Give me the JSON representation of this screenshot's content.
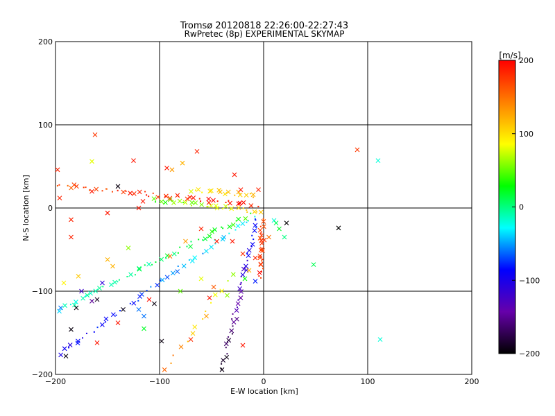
{
  "chart_data": {
    "type": "scatter",
    "title": "Tromsø 20120818 22:26:00-22:27:43",
    "subtitle": "RwPretec (8p) EXPERIMENTAL SKYMAP",
    "xlabel": "E-W location [km]",
    "ylabel": "N-S location [km]",
    "xlim": [
      -200,
      200
    ],
    "ylim": [
      -200,
      200
    ],
    "xticks": [
      "−200",
      "−100",
      "0",
      "100",
      "200"
    ],
    "yticks": [
      "200",
      "100",
      "0",
      "−100",
      "−200"
    ],
    "xtick_values": [
      -200,
      -100,
      0,
      100,
      200
    ],
    "ytick_values": [
      200,
      100,
      0,
      -100,
      -200
    ],
    "grid": true,
    "colorbar": {
      "unit_label": "[m/s]",
      "range": [
        -200,
        200
      ],
      "ticks": [
        "200",
        "100",
        "0",
        "−100",
        "−200"
      ],
      "tick_values": [
        200,
        100,
        0,
        -100,
        -200
      ],
      "colormap": [
        "#000000",
        "#6600aa",
        "#0000ff",
        "#00ffff",
        "#00ff00",
        "#ffff00",
        "#ff8000",
        "#ff0000"
      ]
    },
    "beams": [
      {
        "start": [
          -1,
          -12
        ],
        "end": [
          -3,
          -85
        ],
        "v": [
          160,
          185
        ],
        "n": 26
      },
      {
        "start": [
          -6,
          -12
        ],
        "end": [
          -40,
          -195
        ],
        "v": [
          -70,
          -195
        ],
        "n": 44
      },
      {
        "start": [
          -10,
          -10
        ],
        "end": [
          -200,
          -178
        ],
        "v": [
          -20,
          -105
        ],
        "n": 50
      },
      {
        "start": [
          -14,
          -8
        ],
        "end": [
          -195,
          -122
        ],
        "v": [
          35,
          -25
        ],
        "n": 48
      },
      {
        "start": [
          -4,
          -4
        ],
        "end": [
          -105,
          10
        ],
        "v": [
          105,
          40
        ],
        "n": 30
      },
      {
        "start": [
          -6,
          3
        ],
        "end": [
          -198,
          28
        ],
        "v": [
          195,
          165
        ],
        "n": 48
      },
      {
        "start": [
          -30,
          -80
        ],
        "end": [
          -95,
          -195
        ],
        "v": [
          60,
          150
        ],
        "n": 14
      },
      {
        "start": [
          -8,
          15
        ],
        "end": [
          -70,
          22
        ],
        "v": [
          130,
          80
        ],
        "n": 16
      }
    ],
    "points": [
      {
        "x": -162,
        "y": 88,
        "v": 175
      },
      {
        "x": 90,
        "y": 70,
        "v": 175
      },
      {
        "x": 72,
        "y": -24,
        "v": -200
      },
      {
        "x": 22,
        "y": -18,
        "v": -200
      },
      {
        "x": 110,
        "y": 57,
        "v": -20
      },
      {
        "x": 112,
        "y": -158,
        "v": -20
      },
      {
        "x": 48,
        "y": -68,
        "v": 10
      },
      {
        "x": -185,
        "y": -146,
        "v": -195
      },
      {
        "x": -190,
        "y": -178,
        "v": -195
      },
      {
        "x": -160,
        "y": -162,
        "v": 190
      },
      {
        "x": -140,
        "y": -138,
        "v": 190
      },
      {
        "x": -120,
        "y": -122,
        "v": -60
      },
      {
        "x": -105,
        "y": -115,
        "v": -195
      },
      {
        "x": -98,
        "y": -160,
        "v": -195
      },
      {
        "x": -135,
        "y": -122,
        "v": -195
      },
      {
        "x": -125,
        "y": 57,
        "v": 190
      },
      {
        "x": -93,
        "y": 48,
        "v": 190
      },
      {
        "x": -64,
        "y": 68,
        "v": 185
      },
      {
        "x": -78,
        "y": 54,
        "v": 120
      },
      {
        "x": -88,
        "y": 46,
        "v": 130
      },
      {
        "x": -198,
        "y": 46,
        "v": 185
      },
      {
        "x": -196,
        "y": 12,
        "v": 185
      },
      {
        "x": -185,
        "y": -14,
        "v": 185
      },
      {
        "x": -185,
        "y": -35,
        "v": 185
      },
      {
        "x": -145,
        "y": -70,
        "v": 120
      },
      {
        "x": -150,
        "y": -62,
        "v": 120
      },
      {
        "x": -178,
        "y": -82,
        "v": 110
      },
      {
        "x": -192,
        "y": -90,
        "v": 90
      },
      {
        "x": -130,
        "y": -48,
        "v": 60
      },
      {
        "x": -120,
        "y": 0,
        "v": 190
      },
      {
        "x": -116,
        "y": 8,
        "v": 190
      },
      {
        "x": -60,
        "y": -25,
        "v": 185
      },
      {
        "x": -45,
        "y": -40,
        "v": 190
      },
      {
        "x": -30,
        "y": -40,
        "v": 190
      },
      {
        "x": -20,
        "y": -55,
        "v": 180
      },
      {
        "x": -35,
        "y": -105,
        "v": 60
      },
      {
        "x": -48,
        "y": -95,
        "v": 160
      },
      {
        "x": -52,
        "y": -108,
        "v": 190
      },
      {
        "x": -14,
        "y": -75,
        "v": 120
      },
      {
        "x": -18,
        "y": -85,
        "v": 30
      },
      {
        "x": -8,
        "y": -88,
        "v": -80
      },
      {
        "x": -150,
        "y": -6,
        "v": 190
      },
      {
        "x": -165,
        "y": 20,
        "v": 190
      },
      {
        "x": -165,
        "y": 56,
        "v": 80
      },
      {
        "x": -140,
        "y": 26,
        "v": -195
      },
      {
        "x": -110,
        "y": -110,
        "v": 195
      },
      {
        "x": -115,
        "y": -130,
        "v": -60
      },
      {
        "x": -115,
        "y": -145,
        "v": 20
      },
      {
        "x": -80,
        "y": -100,
        "v": 50
      },
      {
        "x": -60,
        "y": -85,
        "v": 80
      },
      {
        "x": -55,
        "y": -130,
        "v": 130
      },
      {
        "x": -70,
        "y": -158,
        "v": 180
      },
      {
        "x": -20,
        "y": -165,
        "v": 190
      },
      {
        "x": -8,
        "y": -60,
        "v": 185
      },
      {
        "x": 5,
        "y": -35,
        "v": 150
      },
      {
        "x": 10,
        "y": -15,
        "v": -20
      },
      {
        "x": 15,
        "y": -25,
        "v": 20
      },
      {
        "x": 20,
        "y": -35,
        "v": 0
      },
      {
        "x": 12,
        "y": -18,
        "v": 10
      },
      {
        "x": -22,
        "y": 22,
        "v": 190
      },
      {
        "x": -10,
        "y": 16,
        "v": 120
      },
      {
        "x": -5,
        "y": 22,
        "v": 185
      },
      {
        "x": -28,
        "y": 40,
        "v": 190
      },
      {
        "x": -75,
        "y": -40,
        "v": 130
      },
      {
        "x": -90,
        "y": -58,
        "v": 150
      },
      {
        "x": -180,
        "y": -120,
        "v": -195
      },
      {
        "x": -155,
        "y": -90,
        "v": -110
      },
      {
        "x": -175,
        "y": -100,
        "v": -120
      },
      {
        "x": -165,
        "y": -112,
        "v": -150
      },
      {
        "x": -195,
        "y": -120,
        "v": -60
      },
      {
        "x": -160,
        "y": -110,
        "v": -190
      }
    ]
  }
}
